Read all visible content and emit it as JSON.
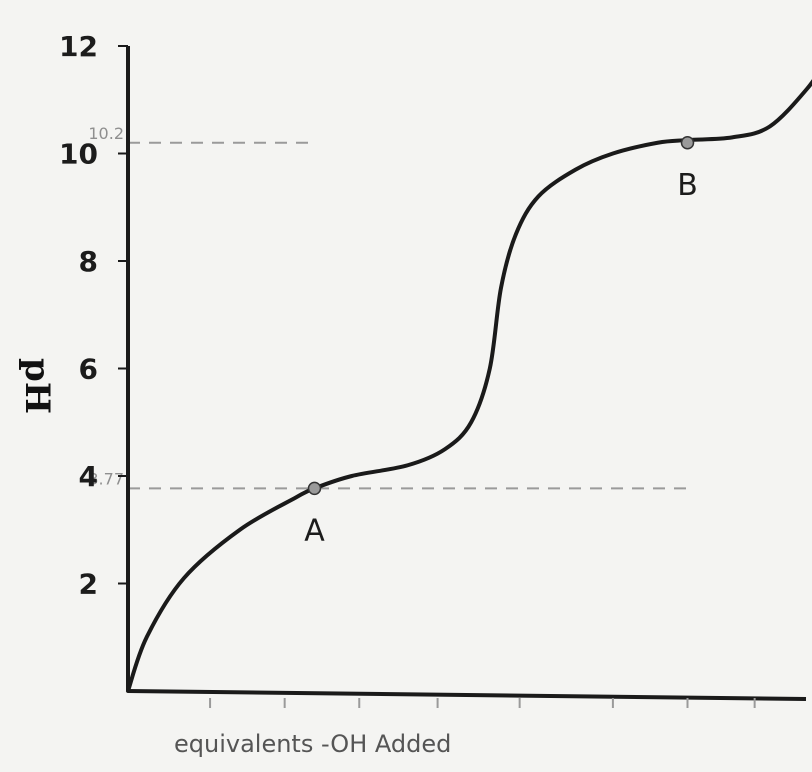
{
  "chart_data": {
    "type": "line",
    "title": "",
    "xlabel": "equivalents -OH Added",
    "ylabel": "pH",
    "ylim": [
      0,
      12
    ],
    "yticks": [
      {
        "value": 12,
        "label": "12"
      },
      {
        "value": 10,
        "label": "10"
      },
      {
        "value": 8,
        "label": "8"
      },
      {
        "value": 6,
        "label": "6"
      },
      {
        "value": 4,
        "label": "4"
      },
      {
        "value": 2,
        "label": "2"
      }
    ],
    "reference_lines": [
      {
        "y": 10.2,
        "label": "10.2"
      },
      {
        "y": 3.77,
        "label": "3.77"
      }
    ],
    "points": [
      {
        "name": "A",
        "x": 0.5,
        "y": 3.77
      },
      {
        "name": "B",
        "x": 1.5,
        "y": 10.2
      }
    ],
    "series": [
      {
        "x": [
          0,
          0.05,
          0.15,
          0.3,
          0.45,
          0.5,
          0.6,
          0.75,
          0.85,
          0.92,
          0.97,
          1.0,
          1.04,
          1.1,
          1.2,
          1.3,
          1.42,
          1.5,
          1.62,
          1.72,
          1.82,
          1.88
        ],
        "y": [
          0,
          1.0,
          2.1,
          3.0,
          3.6,
          3.77,
          4.0,
          4.2,
          4.5,
          5.0,
          6.0,
          7.5,
          8.5,
          9.2,
          9.7,
          10.0,
          10.2,
          10.25,
          10.3,
          10.5,
          11.2,
          11.8
        ]
      }
    ],
    "colors": {
      "curve": "#1a1a1a",
      "reference": "#9a9a9a",
      "marker": "#9a9a9a"
    }
  }
}
